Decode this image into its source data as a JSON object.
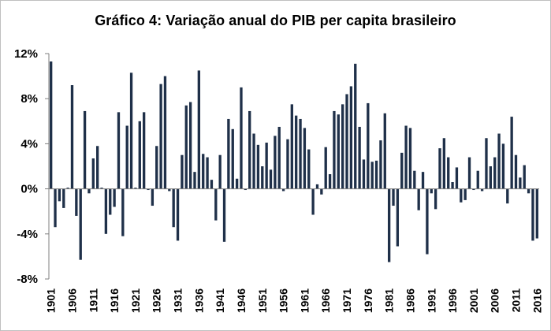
{
  "chart_data": {
    "type": "bar",
    "title": "Gráfico 4: Variação anual do PIB per capita brasileiro",
    "xlabel": "",
    "ylabel": "",
    "ylim": [
      -8,
      12
    ],
    "ytick_values": [
      12,
      8,
      4,
      0,
      -4,
      -8
    ],
    "ytick_labels": [
      "12%",
      "8%",
      "4%",
      "0%",
      "-4%",
      "-8%"
    ],
    "xtick_labels": [
      "1901",
      "1906",
      "1911",
      "1916",
      "1921",
      "1926",
      "1931",
      "1936",
      "1941",
      "1946",
      "1951",
      "1956",
      "1961",
      "1966",
      "1971",
      "1976",
      "1981",
      "1986",
      "1991",
      "1996",
      "2001",
      "2006",
      "2011",
      "2016"
    ],
    "grid": false,
    "legend": "none",
    "bar_color": "#1f3049",
    "series": [
      {
        "name": "Variação anual do PIB per capita (%)",
        "x": [
          1901,
          1902,
          1903,
          1904,
          1905,
          1906,
          1907,
          1908,
          1909,
          1910,
          1911,
          1912,
          1913,
          1914,
          1915,
          1916,
          1917,
          1918,
          1919,
          1920,
          1921,
          1922,
          1923,
          1924,
          1925,
          1926,
          1927,
          1928,
          1929,
          1930,
          1931,
          1932,
          1933,
          1934,
          1935,
          1936,
          1937,
          1938,
          1939,
          1940,
          1941,
          1942,
          1943,
          1944,
          1945,
          1946,
          1947,
          1948,
          1949,
          1950,
          1951,
          1952,
          1953,
          1954,
          1955,
          1956,
          1957,
          1958,
          1959,
          1960,
          1961,
          1962,
          1963,
          1964,
          1965,
          1966,
          1967,
          1968,
          1969,
          1970,
          1971,
          1972,
          1973,
          1974,
          1975,
          1976,
          1977,
          1978,
          1979,
          1980,
          1981,
          1982,
          1983,
          1984,
          1985,
          1986,
          1987,
          1988,
          1989,
          1990,
          1991,
          1992,
          1993,
          1994,
          1995,
          1996,
          1997,
          1998,
          1999,
          2000,
          2001,
          2002,
          2003,
          2004,
          2005,
          2006,
          2007,
          2008,
          2009,
          2010,
          2011,
          2012,
          2013,
          2014,
          2015,
          2016
        ],
        "values": [
          11.3,
          -3.4,
          -1.1,
          -1.7,
          0.1,
          9.2,
          -2.4,
          -6.3,
          6.9,
          -0.4,
          2.7,
          3.8,
          0.1,
          -4.0,
          -2.3,
          -1.6,
          6.8,
          -4.2,
          5.6,
          10.3,
          0.1,
          6.0,
          6.8,
          -0.1,
          -1.5,
          3.8,
          9.3,
          10.0,
          -0.2,
          -3.4,
          -4.6,
          3.0,
          7.4,
          7.7,
          1.5,
          10.5,
          3.1,
          2.8,
          0.8,
          -2.8,
          3.0,
          -4.7,
          6.2,
          5.3,
          0.9,
          9.0,
          -0.1,
          6.9,
          4.9,
          3.9,
          2.0,
          4.1,
          1.7,
          4.7,
          5.5,
          -0.2,
          4.4,
          7.5,
          6.5,
          6.2,
          5.4,
          3.5,
          -2.3,
          0.4,
          -0.5,
          3.7,
          1.3,
          6.9,
          6.6,
          7.5,
          8.4,
          9.1,
          11.1,
          5.5,
          2.6,
          7.6,
          2.4,
          2.5,
          4.3,
          6.7,
          -6.5,
          -1.5,
          -5.1,
          3.2,
          5.6,
          5.4,
          1.6,
          -1.9,
          1.5,
          -5.8,
          -0.4,
          -1.8,
          3.6,
          4.5,
          2.8,
          0.6,
          1.9,
          -1.2,
          -1.0,
          2.8,
          -0.1,
          1.6,
          -0.2,
          4.5,
          2.0,
          2.8,
          4.9,
          4.0,
          -1.3,
          6.4,
          3.0,
          1.0,
          2.1,
          -0.4,
          -4.6,
          -4.4
        ]
      }
    ]
  }
}
